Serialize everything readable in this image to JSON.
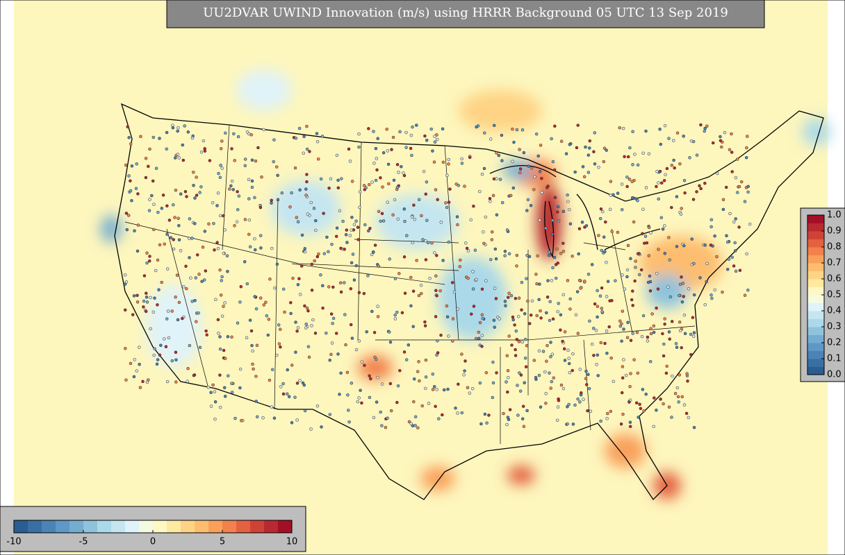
{
  "title": "UU2DVAR UWIND Innovation (m/s) using HRRR Background 05 UTC 13 Sep 2019",
  "colors": [
    "#2a5d92",
    "#3a6fa4",
    "#4a84b6",
    "#5e98c6",
    "#74add1",
    "#8fc3dd",
    "#abd9e9",
    "#c5e6f0",
    "#e0f3f8",
    "#f5fbe0",
    "#fff7c4",
    "#fee9a0",
    "#fed384",
    "#fdbd6f",
    "#f9a05b",
    "#f2814b",
    "#e4613f",
    "#d14236",
    "#b82a2f",
    "#a50f26"
  ],
  "innovation_colorbar": {
    "lim": [
      -10,
      10
    ],
    "ticks": [
      -10,
      -5,
      0,
      5,
      10
    ]
  },
  "ratio_colorbar": {
    "lim": [
      0,
      1
    ],
    "ticks": [
      {
        "value": 0,
        "label": "0.0"
      },
      0.1,
      0.2,
      0.3,
      0.4,
      0.5,
      0.6,
      0.7,
      0.8,
      0.9,
      {
        "value": 1,
        "label": "1.0"
      }
    ]
  }
}
